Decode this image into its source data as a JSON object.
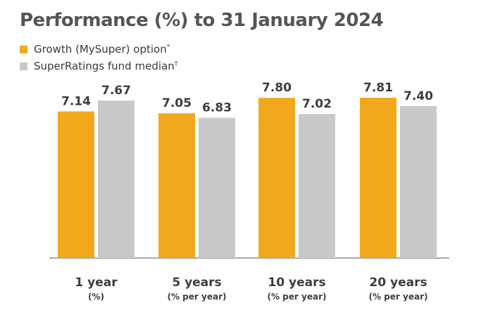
{
  "title": "Performance (%) to 31 January 2024",
  "colors": {
    "series1": "#F2A81D",
    "series2": "#C9C9CA",
    "axis": "#777777"
  },
  "legend": {
    "items": [
      {
        "label": "Growth (MySuper) option",
        "mark": "*"
      },
      {
        "label": "SuperRatings fund median",
        "mark": "†"
      }
    ]
  },
  "chart_data": {
    "type": "bar",
    "title": "Performance (%) to 31 January 2024",
    "categories": [
      "1 year",
      "5 years",
      "10 years",
      "20 years"
    ],
    "category_sublabels": [
      "(%)",
      "(% per year)",
      "(% per year)",
      "(% per year)"
    ],
    "series": [
      {
        "name": "Growth (MySuper) option*",
        "values": [
          7.14,
          7.05,
          7.8,
          7.81
        ],
        "labels": [
          "7.14",
          "7.05",
          "7.80",
          "7.81"
        ]
      },
      {
        "name": "SuperRatings fund median†",
        "values": [
          7.67,
          6.83,
          7.02,
          7.4
        ],
        "labels": [
          "7.67",
          "6.83",
          "7.02",
          "7.40"
        ]
      }
    ],
    "ylim": [
      0,
      8.8
    ],
    "grid": false,
    "legend_position": "top-left"
  }
}
